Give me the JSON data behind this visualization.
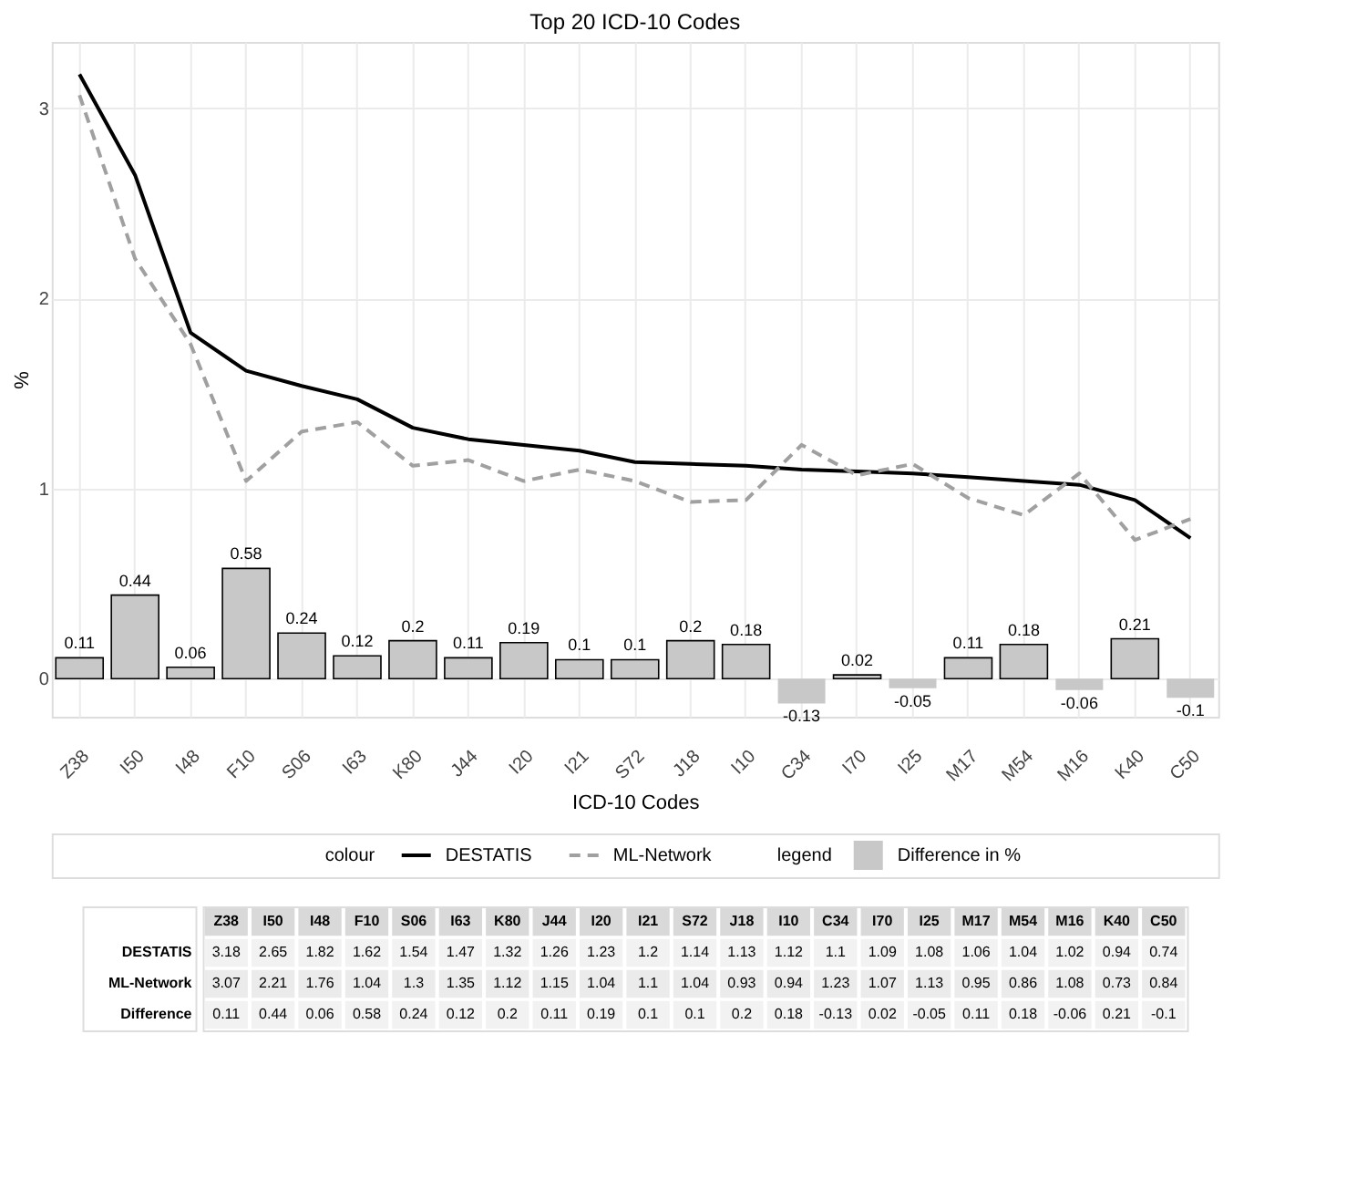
{
  "chart_data": [
    {
      "type": "bar",
      "title": "Top 20 ICD-10 Codes",
      "xlabel": "ICD-10 Codes",
      "ylabel": "%",
      "legend_title": "colour",
      "annotations": [
        "legend"
      ],
      "categories": [
        "Z38",
        "I50",
        "I48",
        "F10",
        "S06",
        "I63",
        "K80",
        "J44",
        "I20",
        "I21",
        "S72",
        "J18",
        "I10",
        "C34",
        "I70",
        "I25",
        "M17",
        "M54",
        "M16",
        "K40",
        "C50"
      ],
      "series": [
        {
          "name": "Difference in %",
          "type": "bar",
          "color": "#c8c8c8",
          "values": [
            0.11,
            0.44,
            0.06,
            0.58,
            0.24,
            0.12,
            0.2,
            0.11,
            0.19,
            0.1,
            0.1,
            0.2,
            0.18,
            -0.13,
            0.02,
            -0.05,
            0.11,
            0.18,
            -0.06,
            0.21,
            -0.1
          ],
          "value_labels": [
            "0.11",
            "0.44",
            "0.06",
            "0.58",
            "0.24",
            "0.12",
            "0.2",
            "0.11",
            "0.19",
            "0.1",
            "0.1",
            "0.2",
            "0.18",
            "-0.13",
            "0.02",
            "-0.05",
            "0.11",
            "0.18",
            "-0.06",
            "0.21",
            "-0.1"
          ]
        },
        {
          "name": "DESTATIS",
          "type": "line",
          "color": "#000000",
          "line_style": "solid",
          "values": [
            3.18,
            2.65,
            1.82,
            1.62,
            1.54,
            1.47,
            1.32,
            1.26,
            1.23,
            1.2,
            1.14,
            1.13,
            1.12,
            1.1,
            1.09,
            1.08,
            1.06,
            1.04,
            1.02,
            0.94,
            0.74
          ]
        },
        {
          "name": "ML-Network",
          "type": "line",
          "color": "#a0a0a0",
          "line_style": "dashed",
          "values": [
            3.07,
            2.21,
            1.76,
            1.04,
            1.3,
            1.35,
            1.12,
            1.15,
            1.04,
            1.1,
            1.04,
            0.93,
            0.94,
            1.23,
            1.07,
            1.13,
            0.95,
            0.86,
            1.08,
            0.73,
            0.84
          ]
        }
      ],
      "ylim": [
        -0.2,
        3.35
      ],
      "yticks": [
        0,
        1,
        2,
        3
      ],
      "grid": true,
      "legend": "bottom"
    },
    {
      "type": "heatmap",
      "categories": [
        "Z38",
        "I50",
        "I48",
        "F10",
        "S06",
        "I63",
        "K80",
        "J44",
        "I20",
        "I21",
        "S72",
        "J18",
        "I10",
        "C34",
        "I70",
        "I25",
        "M17",
        "M54",
        "M16",
        "K40",
        "C50"
      ],
      "y_categories": [
        "DESTATIS",
        "ML-Network",
        "Difference"
      ],
      "cells": [
        [
          3.18,
          2.65,
          1.82,
          1.62,
          1.54,
          1.47,
          1.32,
          1.26,
          1.23,
          1.2,
          1.14,
          1.13,
          1.12,
          1.1,
          1.09,
          1.08,
          1.06,
          1.04,
          1.02,
          0.94,
          0.74
        ],
        [
          3.07,
          2.21,
          1.76,
          1.04,
          1.3,
          1.35,
          1.12,
          1.15,
          1.04,
          1.1,
          1.04,
          0.93,
          0.94,
          1.23,
          1.07,
          1.13,
          0.95,
          0.86,
          1.08,
          0.73,
          0.84
        ],
        [
          0.11,
          0.44,
          0.06,
          0.58,
          0.24,
          0.12,
          0.2,
          0.11,
          0.19,
          0.1,
          0.1,
          0.2,
          0.18,
          -0.13,
          0.02,
          -0.05,
          0.11,
          0.18,
          -0.06,
          0.21,
          -0.1
        ]
      ],
      "data_labels": true
    }
  ]
}
